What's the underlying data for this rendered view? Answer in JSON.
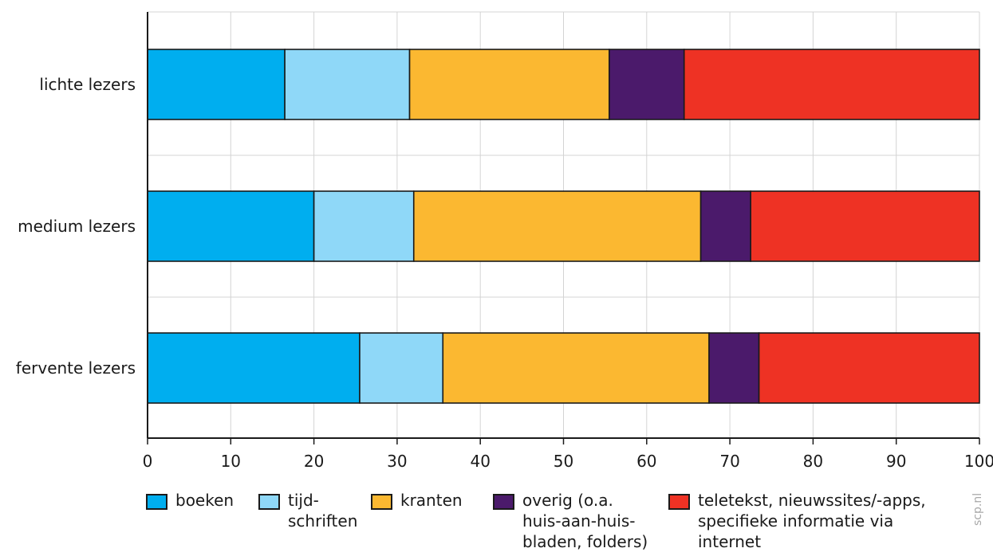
{
  "chart_data": {
    "type": "bar",
    "orientation": "horizontal",
    "stacked": true,
    "categories": [
      "lichte lezers",
      "medium lezers",
      "fervente lezers"
    ],
    "series": [
      {
        "name": "boeken",
        "values": [
          16.5,
          20.0,
          25.5
        ],
        "color": "#00aeef"
      },
      {
        "name": "tijd-\nschriften",
        "values": [
          15.0,
          12.0,
          10.0
        ],
        "color": "#8fd8f8"
      },
      {
        "name": "kranten",
        "values": [
          24.0,
          34.5,
          32.0
        ],
        "color": "#fbb831"
      },
      {
        "name": "overig (o.a.\nhuis-aan-huis-\nbladen, folders)",
        "values": [
          9.0,
          6.0,
          6.0
        ],
        "color": "#4b1a6b"
      },
      {
        "name": "teletekst, nieuwssites/-apps,\nspecifieke informatie via\ninternet",
        "values": [
          35.5,
          27.5,
          26.5
        ],
        "color": "#ee3224"
      }
    ],
    "xlim": [
      0,
      100
    ],
    "xticks": [
      0,
      10,
      20,
      30,
      40,
      50,
      60,
      70,
      80,
      90,
      100
    ],
    "grid": true,
    "legend_position": "bottom"
  },
  "credit": "scp.nl"
}
